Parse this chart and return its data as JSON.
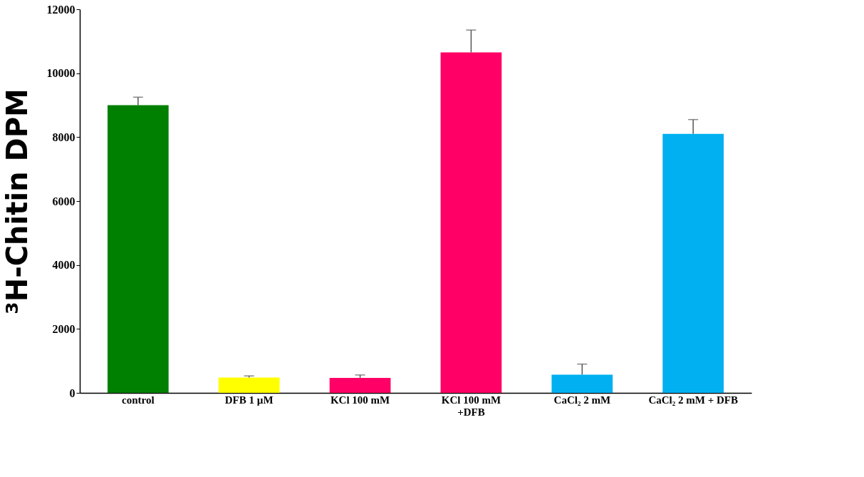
{
  "chart_data": {
    "type": "bar",
    "ylabel": "³H-Chitin DPM",
    "categories": [
      "control",
      "DFB 1 µM",
      "KCl 100 mM",
      "KCl 100 mM\n+DFB",
      "CaCl₂ 2 mM",
      "CaCl₂ 2 mM + DFB"
    ],
    "values": [
      9000,
      480,
      470,
      10650,
      570,
      8100
    ],
    "errors": [
      [
        9000,
        9250
      ],
      [
        480,
        530
      ],
      [
        470,
        560
      ],
      [
        10650,
        11350
      ],
      [
        570,
        900
      ],
      [
        8100,
        8550
      ]
    ],
    "colors": [
      "#008000",
      "#ffff00",
      "#ff0066",
      "#ff0066",
      "#00b0f0",
      "#00b0f0"
    ],
    "ylim": [
      0,
      12000
    ],
    "yticks": [
      0,
      2000,
      4000,
      6000,
      8000,
      10000,
      12000
    ],
    "grid": false
  }
}
